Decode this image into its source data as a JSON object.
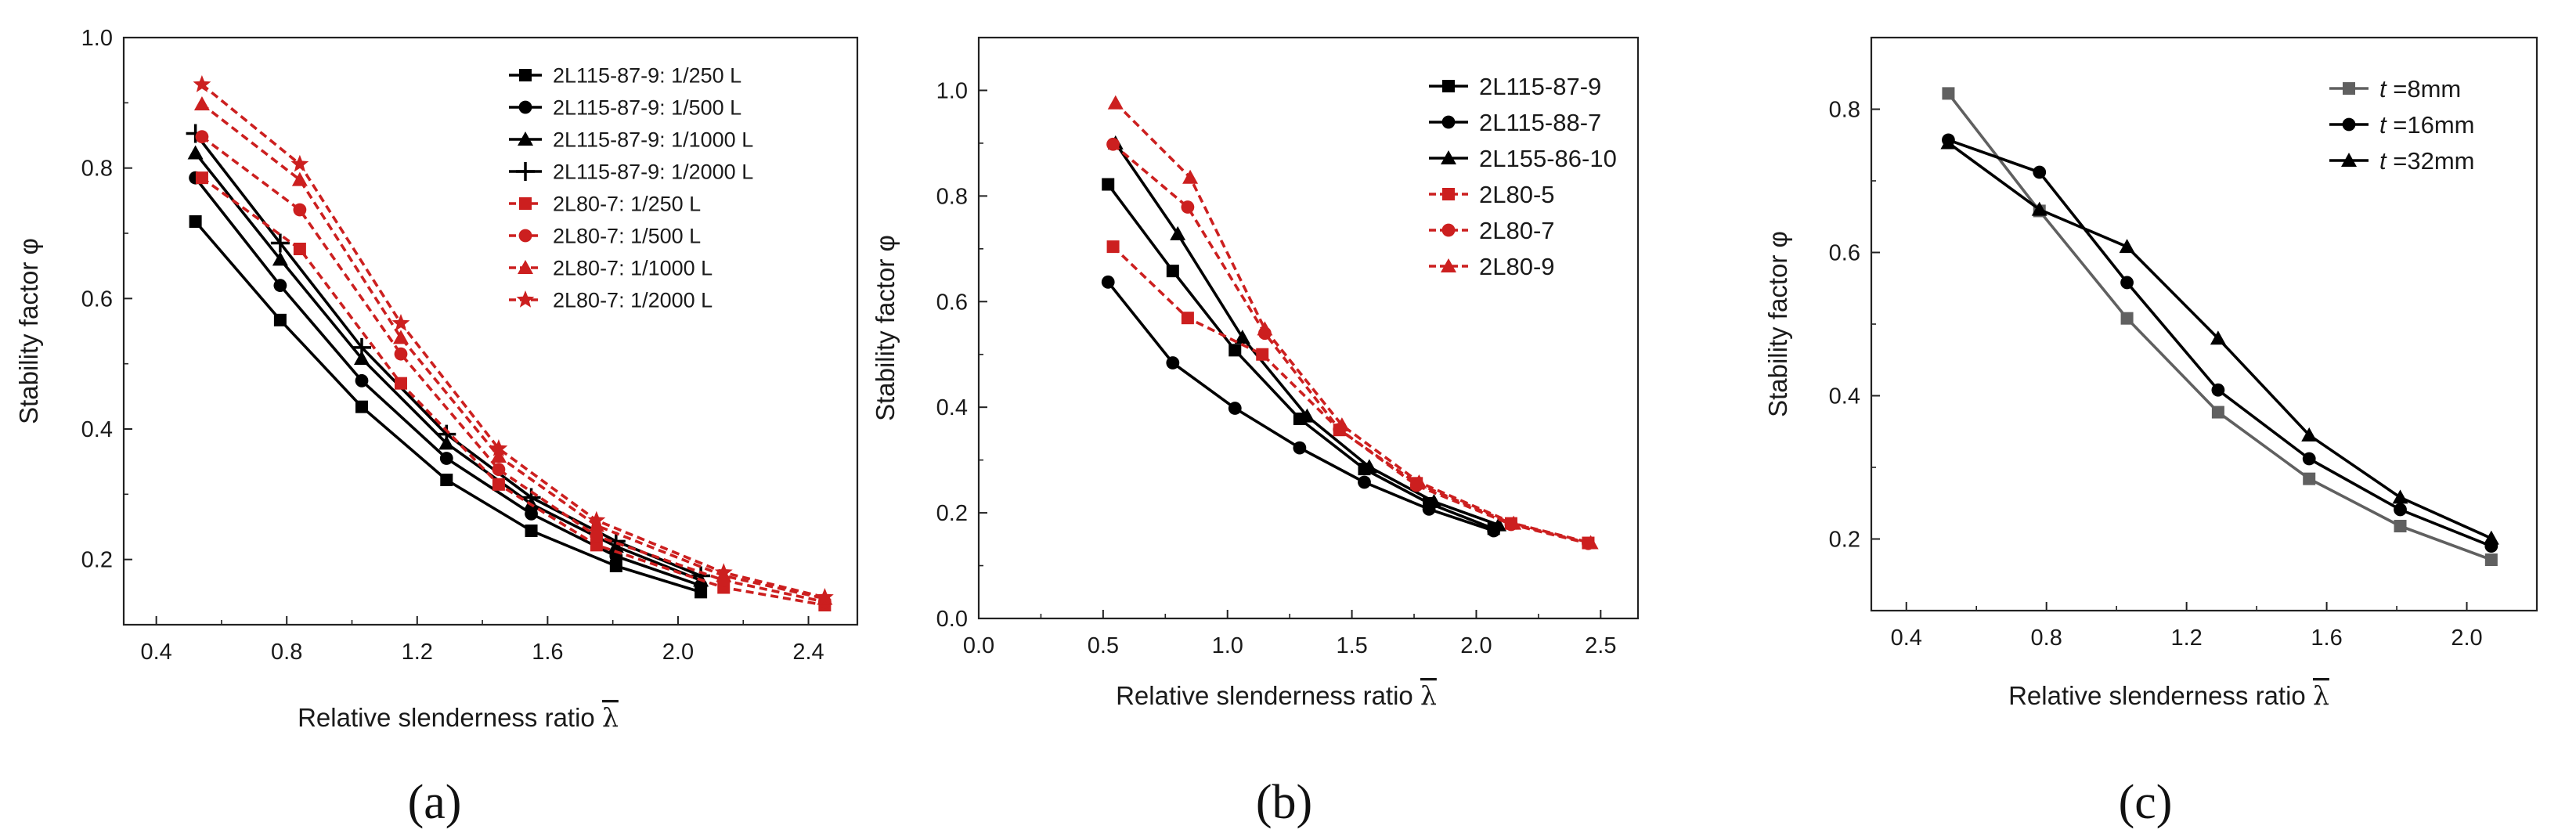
{
  "figure": {
    "panels": [
      "(a)",
      "(b)",
      "(c)"
    ]
  },
  "chart_data": [
    {
      "type": "line",
      "panel_label": "(a)",
      "xlabel": "Relative slenderness ratio",
      "xlabel_symbol": "λ",
      "ylabel": "Stability factor φ",
      "xlim": [
        0.3,
        2.55
      ],
      "ylim": [
        0.1,
        1.0
      ],
      "xticks": [
        0.4,
        0.8,
        1.2,
        1.6,
        2.0,
        2.4
      ],
      "xtick_labels": [
        "0.4",
        "0.8",
        "1.2",
        "1.6",
        "2.0",
        "2.4"
      ],
      "yticks": [
        0.2,
        0.4,
        0.6,
        0.8,
        1.0
      ],
      "ytick_labels": [
        "0.2",
        "0.4",
        "0.6",
        "0.8",
        "1.0"
      ],
      "legend_position": "top-right",
      "series": [
        {
          "name": "2L115-87-9: 1/250 L",
          "color": "#000000",
          "dash": false,
          "marker": "square",
          "x": [
            0.52,
            0.78,
            1.03,
            1.29,
            1.55,
            1.81,
            2.07
          ],
          "y": [
            0.718,
            0.567,
            0.434,
            0.322,
            0.244,
            0.19,
            0.15
          ]
        },
        {
          "name": "2L115-87-9: 1/500 L",
          "color": "#000000",
          "dash": false,
          "marker": "circle",
          "x": [
            0.52,
            0.78,
            1.03,
            1.29,
            1.55,
            1.81,
            2.07
          ],
          "y": [
            0.785,
            0.62,
            0.474,
            0.355,
            0.27,
            0.205,
            0.16
          ]
        },
        {
          "name": "2L115-87-9: 1/1000 L",
          "color": "#000000",
          "dash": false,
          "marker": "triangle",
          "x": [
            0.52,
            0.78,
            1.03,
            1.29,
            1.55,
            1.81,
            2.07
          ],
          "y": [
            0.823,
            0.66,
            0.508,
            0.378,
            0.285,
            0.22,
            0.168
          ]
        },
        {
          "name": "2L115-87-9: 1/2000 L",
          "color": "#000000",
          "dash": false,
          "marker": "plus",
          "x": [
            0.52,
            0.78,
            1.03,
            1.29,
            1.55,
            1.81,
            2.07
          ],
          "y": [
            0.853,
            0.685,
            0.525,
            0.392,
            0.295,
            0.228,
            0.175
          ]
        },
        {
          "name": "2L80-7: 1/250 L",
          "color": "#cc1f1f",
          "dash": true,
          "marker": "square",
          "x": [
            0.54,
            0.84,
            1.15,
            1.45,
            1.75,
            2.14,
            2.45
          ],
          "y": [
            0.785,
            0.676,
            0.47,
            0.315,
            0.222,
            0.157,
            0.13
          ]
        },
        {
          "name": "2L80-7: 1/500 L",
          "color": "#cc1f1f",
          "dash": true,
          "marker": "circle",
          "x": [
            0.54,
            0.84,
            1.15,
            1.45,
            1.75,
            2.14,
            2.45
          ],
          "y": [
            0.848,
            0.736,
            0.515,
            0.338,
            0.236,
            0.168,
            0.135
          ]
        },
        {
          "name": "2L80-7: 1/1000 L",
          "color": "#cc1f1f",
          "dash": true,
          "marker": "triangle",
          "x": [
            0.54,
            0.84,
            1.15,
            1.45,
            1.75,
            2.14,
            2.45
          ],
          "y": [
            0.898,
            0.782,
            0.54,
            0.358,
            0.252,
            0.175,
            0.14
          ]
        },
        {
          "name": "2L80-7: 1/2000 L",
          "color": "#cc1f1f",
          "dash": true,
          "marker": "star",
          "x": [
            0.54,
            0.84,
            1.15,
            1.45,
            1.75,
            2.14,
            2.45
          ],
          "y": [
            0.928,
            0.806,
            0.562,
            0.37,
            0.26,
            0.18,
            0.142
          ]
        }
      ]
    },
    {
      "type": "line",
      "panel_label": "(b)",
      "xlabel": "Relative slenderness ratio",
      "xlabel_symbol": "λ",
      "ylabel": "Stability factor φ",
      "xlim": [
        0.0,
        2.65
      ],
      "ylim": [
        0.0,
        1.1
      ],
      "xticks": [
        0.0,
        0.5,
        1.0,
        1.5,
        2.0,
        2.5
      ],
      "xtick_labels": [
        "0.0",
        "0.5",
        "1.0",
        "1.5",
        "2.0",
        "2.5"
      ],
      "yticks": [
        0.0,
        0.2,
        0.4,
        0.6,
        0.8,
        1.0
      ],
      "ytick_labels": [
        "0.0",
        "0.2",
        "0.4",
        "0.6",
        "0.8",
        "1.0"
      ],
      "legend_position": "top-right",
      "series": [
        {
          "name": "2L115-87-9",
          "color": "#000000",
          "dash": false,
          "marker": "square",
          "x": [
            0.52,
            0.78,
            1.03,
            1.29,
            1.55,
            1.81,
            2.07
          ],
          "y": [
            0.822,
            0.658,
            0.508,
            0.378,
            0.283,
            0.218,
            0.17
          ]
        },
        {
          "name": "2L115-88-7",
          "color": "#000000",
          "dash": false,
          "marker": "circle",
          "x": [
            0.52,
            0.78,
            1.03,
            1.29,
            1.55,
            1.81,
            2.07
          ],
          "y": [
            0.637,
            0.484,
            0.398,
            0.323,
            0.258,
            0.207,
            0.166
          ]
        },
        {
          "name": "2L155-86-10",
          "color": "#000000",
          "dash": false,
          "marker": "triangle",
          "x": [
            0.55,
            0.8,
            1.06,
            1.32,
            1.57,
            1.83,
            2.09
          ],
          "y": [
            0.9,
            0.728,
            0.532,
            0.383,
            0.287,
            0.221,
            0.177
          ]
        },
        {
          "name": "2L80-5",
          "color": "#cc1f1f",
          "dash": true,
          "marker": "square",
          "x": [
            0.54,
            0.84,
            1.14,
            1.45,
            1.76,
            2.14,
            2.45
          ],
          "y": [
            0.704,
            0.569,
            0.5,
            0.357,
            0.256,
            0.18,
            0.143
          ]
        },
        {
          "name": "2L80-7",
          "color": "#cc1f1f",
          "dash": true,
          "marker": "circle",
          "x": [
            0.54,
            0.84,
            1.15,
            1.45,
            1.76,
            2.14,
            2.45
          ],
          "y": [
            0.898,
            0.779,
            0.54,
            0.358,
            0.252,
            0.178,
            0.142
          ]
        },
        {
          "name": "2L80-9",
          "color": "#cc1f1f",
          "dash": true,
          "marker": "triangle",
          "x": [
            0.55,
            0.85,
            1.15,
            1.46,
            1.77,
            2.15,
            2.46
          ],
          "y": [
            0.976,
            0.835,
            0.548,
            0.366,
            0.258,
            0.18,
            0.143
          ]
        }
      ]
    },
    {
      "type": "line",
      "panel_label": "(c)",
      "xlabel": "Relative slenderness ratio",
      "xlabel_symbol": "λ",
      "ylabel": "Stability factor φ",
      "xlim": [
        0.3,
        2.2
      ],
      "ylim": [
        0.1,
        0.9
      ],
      "xticks": [
        0.4,
        0.8,
        1.2,
        1.6,
        2.0
      ],
      "xtick_labels": [
        "0.4",
        "0.8",
        "1.2",
        "1.6",
        "2.0"
      ],
      "yticks": [
        0.2,
        0.4,
        0.6,
        0.8
      ],
      "ytick_labels": [
        "0.2",
        "0.4",
        "0.6",
        "0.8"
      ],
      "legend_position": "top-right",
      "series": [
        {
          "name": "t =8mm",
          "label_italic": "t",
          "label_rest": " =8mm",
          "color": "#606060",
          "dash": false,
          "marker": "square",
          "x": [
            0.52,
            0.78,
            1.03,
            1.29,
            1.55,
            1.81,
            2.07
          ],
          "y": [
            0.822,
            0.658,
            0.508,
            0.377,
            0.284,
            0.218,
            0.171
          ]
        },
        {
          "name": "t =16mm",
          "label_italic": "t",
          "label_rest": " =16mm",
          "color": "#000000",
          "dash": false,
          "marker": "circle",
          "x": [
            0.52,
            0.78,
            1.03,
            1.29,
            1.55,
            1.81,
            2.07
          ],
          "y": [
            0.757,
            0.712,
            0.558,
            0.408,
            0.312,
            0.241,
            0.19
          ]
        },
        {
          "name": "t =32mm",
          "label_italic": "t",
          "label_rest": " =32mm",
          "color": "#000000",
          "dash": false,
          "marker": "triangle",
          "x": [
            0.52,
            0.78,
            1.03,
            1.29,
            1.55,
            1.81,
            2.07
          ],
          "y": [
            0.753,
            0.66,
            0.608,
            0.48,
            0.345,
            0.258,
            0.201
          ]
        }
      ]
    }
  ]
}
